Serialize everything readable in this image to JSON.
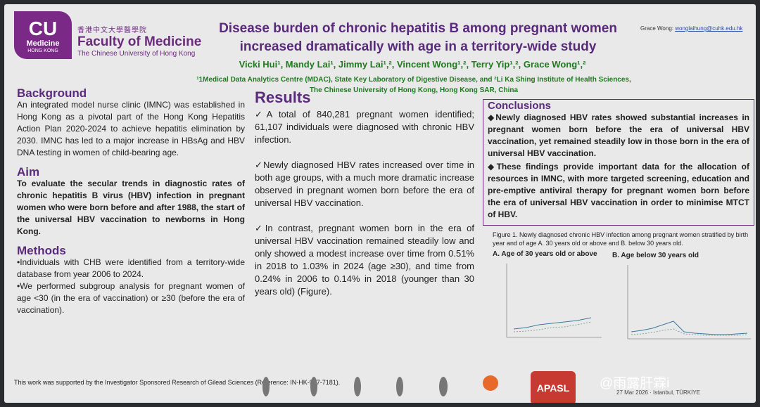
{
  "header": {
    "logo_big": "CU",
    "logo_sub": "Medicine",
    "logo_small": "HONG KONG",
    "faculty_zh": "香港中文大學醫學院",
    "faculty": "Faculty of Medicine",
    "university": "The Chinese University of Hong Kong",
    "title": "Disease burden of chronic hepatitis B among pregnant women increased dramatically with age in a territory-wide study",
    "contact_name": "Grace Wong: ",
    "contact_email": "wonglaihung@cuhk.edu.hk",
    "authors": "Vicki Hui¹, Mandy Lai¹, Jimmy Lai¹,², Vincent Wong¹,², Terry Yip¹,², Grace Wong¹,²",
    "affil1": "¹1Medical Data Analytics Centre (MDAC), State Key Laboratory of Digestive Disease, and ²Li Ka Shing Institute of Health Sciences,",
    "affil2": "The Chinese University of Hong Kong, Hong Kong SAR, China"
  },
  "background": {
    "heading": "Background",
    "text": "An integrated model nurse clinic (IMNC) was established in Hong Kong as a pivotal part of the Hong Kong Hepatitis Action Plan 2020-2024 to achieve hepatitis elimination by 2030. IMNC has led to a major increase in HBsAg and HBV DNA testing in women of child-bearing age."
  },
  "aim": {
    "heading": "Aim",
    "text": "To evaluate the secular trends in diagnostic rates of chronic hepatitis B virus (HBV) infection in pregnant women who were born before and after 1988, the start of the universal HBV vaccination to newborns in Hong Kong."
  },
  "methods": {
    "heading": "Methods",
    "p1": "•Individuals with CHB were identified from a territory-wide database from year 2006 to 2024.",
    "p2": "•We performed subgroup analysis for pregnant women of age <30 (in the era of vaccination) or ≥30 (before the era of vaccination)."
  },
  "results": {
    "heading": "Results",
    "p1": "✓A total of 840,281 pregnant women identified; 61,107 individuals were diagnosed with chronic HBV infection.",
    "p2": "✓Newly diagnosed HBV rates increased over time in both age groups, with a much more dramatic increase observed in pregnant women born before the era of universal HBV vaccination.",
    "p3": "✓In contrast, pregnant women born in the era of universal HBV vaccination remained steadily low and only showed a modest increase over time from 0.51% in 2018 to 1.03% in 2024 (age ≥30), and time from 0.24% in 2006 to 0.14% in 2018 (younger than 30 years old) (Figure)."
  },
  "conclusions": {
    "heading": "Conclusions",
    "p1": "◆Newly diagnosed HBV rates showed substantial increases in pregnant women born before the era of universal HBV vaccination, yet remained steadily low in those born in the era of universal HBV vaccination.",
    "p2": "◆These findings provide important data for the allocation of resources in IMNC, with more targeted screening, education and pre-emptive antiviral therapy for pregnant women born before the era of universal HBV vaccination in order to minimise MTCT of HBV."
  },
  "figure": {
    "caption": "Figure 1. Newly diagnosed chronic HBV infection among pregnant women stratified by birth year and of age A. 30 years old or above and B. below 30 years old.",
    "panel_a": "A. Age of 30 years old or above",
    "panel_b": "B. Age below 30 years old"
  },
  "footer": {
    "funding": "This work was supported by the Investigator Sponsored Research of Gilead Sciences (Reference: IN-HK-987-7181).",
    "apasl": "APASL",
    "watermark": "@雨露肝霖i",
    "conf": "27 Mar 2026 · Istanbul, TÜRKİYE"
  }
}
